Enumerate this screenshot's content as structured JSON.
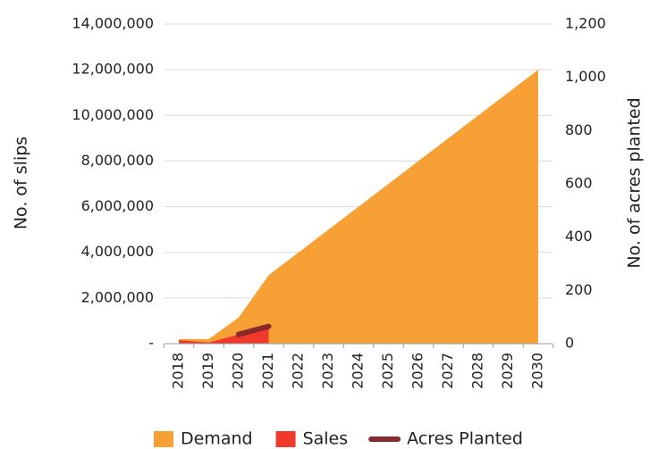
{
  "chart_data": {
    "type": "area",
    "y_label": "No. of slips",
    "y2_label": "No. of acres planted",
    "categories": [
      "2018",
      "2019",
      "2020",
      "2021",
      "2022",
      "2023",
      "2024",
      "2025",
      "2026",
      "2027",
      "2028",
      "2029",
      "2030"
    ],
    "series": [
      {
        "name": "Demand",
        "color": "#f7a035",
        "type": "area",
        "values": [
          200000,
          200000,
          1150000,
          3000000,
          4000000,
          5000000,
          6000000,
          7000000,
          8000000,
          9000000,
          10000000,
          11000000,
          12000000
        ]
      },
      {
        "name": "Sales",
        "color": "#f0382b",
        "type": "area",
        "values": [
          150000,
          50000,
          400000,
          700000,
          null,
          null,
          null,
          null,
          null,
          null,
          null,
          null,
          null
        ]
      },
      {
        "name": "Acres Planted",
        "color": "#8b2a2a",
        "type": "line",
        "axis": "y2",
        "values": [
          null,
          null,
          35,
          65,
          null,
          null,
          null,
          null,
          null,
          null,
          null,
          null,
          null
        ]
      }
    ],
    "ylim": [
      0,
      14000000
    ],
    "yticks": [
      {
        "value": 0,
        "label": "-"
      },
      {
        "value": 2000000,
        "label": "2,000,000"
      },
      {
        "value": 4000000,
        "label": "4,000,000"
      },
      {
        "value": 6000000,
        "label": "6,000,000"
      },
      {
        "value": 8000000,
        "label": "8,000,000"
      },
      {
        "value": 10000000,
        "label": "10,000,000"
      },
      {
        "value": 12000000,
        "label": "12,000,000"
      },
      {
        "value": 14000000,
        "label": "14,000,000"
      }
    ],
    "y2lim": [
      0,
      1200
    ],
    "y2ticks": [
      0,
      200,
      400,
      600,
      800,
      {
        "value": 1000,
        "label": "1,000"
      },
      {
        "value": 1200,
        "label": "1,200"
      }
    ],
    "grid": true,
    "legend": "bottom"
  }
}
